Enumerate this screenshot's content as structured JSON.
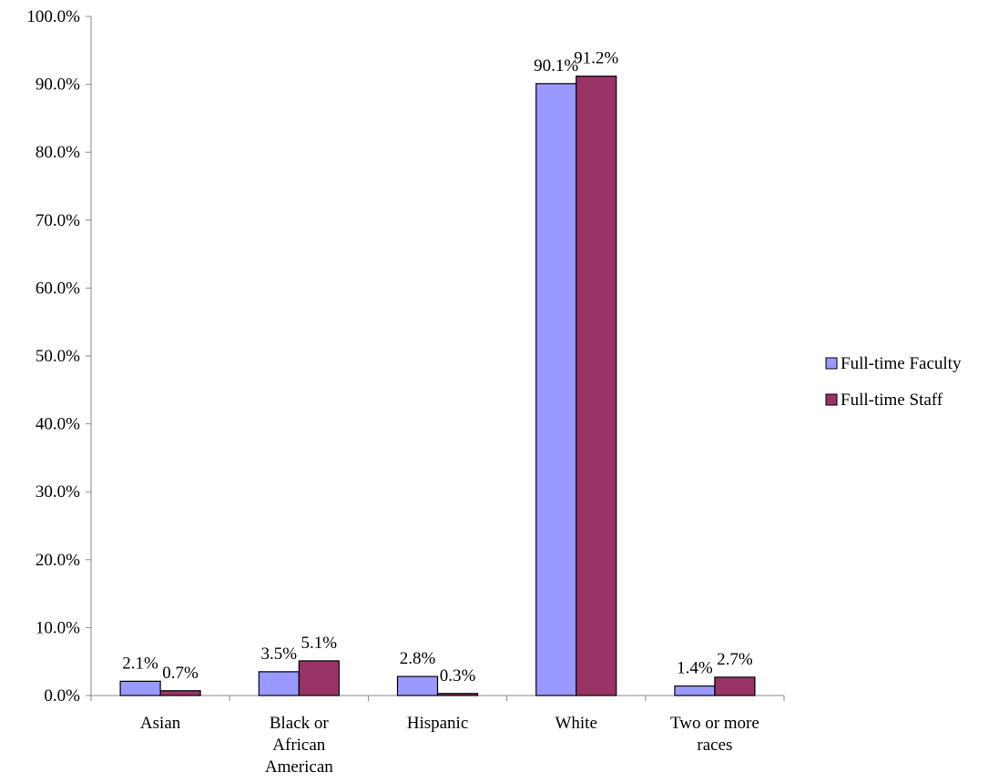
{
  "chart_data": {
    "type": "bar",
    "title": "",
    "xlabel": "",
    "ylabel": "",
    "categories": [
      [
        "Asian"
      ],
      [
        "Black or",
        "African",
        "American"
      ],
      [
        "Hispanic"
      ],
      [
        "White"
      ],
      [
        "Two or more",
        "races"
      ]
    ],
    "series": [
      {
        "name": "Full-time Faculty",
        "color": "#9999ff",
        "values": [
          2.1,
          3.5,
          2.8,
          90.1,
          1.4
        ],
        "labels": [
          "2.1%",
          "3.5%",
          "2.8%",
          "90.1%",
          "1.4%"
        ]
      },
      {
        "name": "Full-time Staff",
        "color": "#993366",
        "values": [
          0.7,
          5.1,
          0.3,
          91.2,
          2.7
        ],
        "labels": [
          "0.7%",
          "5.1%",
          "0.3%",
          "91.2%",
          "2.7%"
        ]
      }
    ],
    "ylim": [
      0,
      100
    ],
    "yticks": [
      0,
      10,
      20,
      30,
      40,
      50,
      60,
      70,
      80,
      90,
      100
    ],
    "ytick_labels": [
      "0.0%",
      "10.0%",
      "20.0%",
      "30.0%",
      "40.0%",
      "50.0%",
      "60.0%",
      "70.0%",
      "80.0%",
      "90.0%",
      "100.0%"
    ],
    "grid": false,
    "legend": "right"
  }
}
